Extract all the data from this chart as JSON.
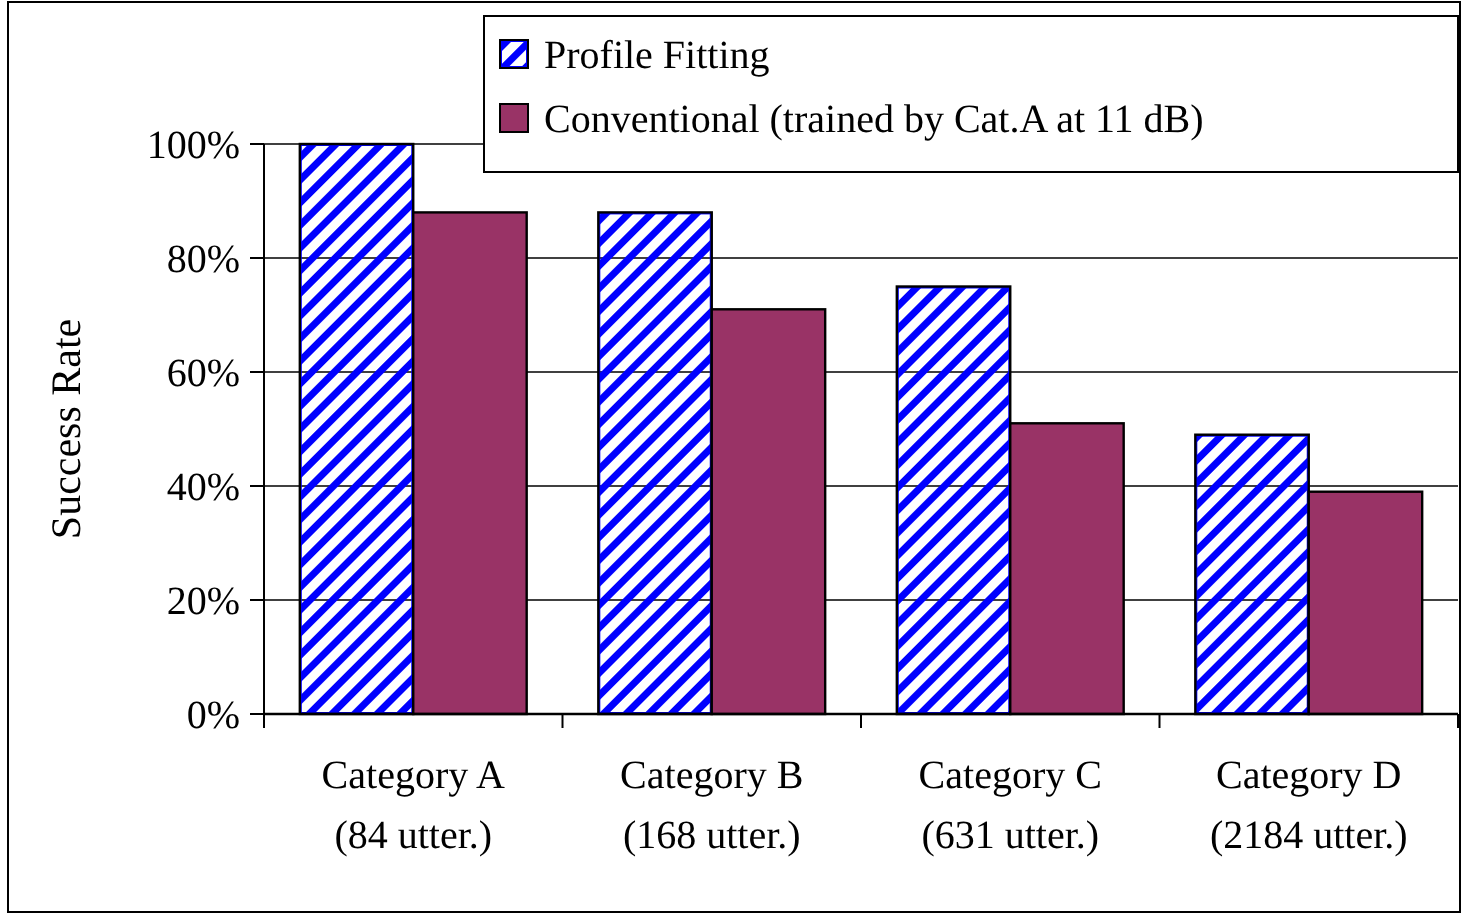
{
  "chart_data": {
    "type": "bar",
    "ylabel": "Success Rate",
    "categories": [
      "Category A\n(84 utter.)",
      "Category B\n(168 utter.)",
      "Category C\n(631 utter.)",
      "Category D\n(2184 utter.)"
    ],
    "series": [
      {
        "name": "Profile Fitting",
        "color": "#0000ff",
        "values": [
          100,
          88,
          75,
          49
        ]
      },
      {
        "name": "Conventional (trained by Cat.A at 11 dB)",
        "color": "#993366",
        "values": [
          88,
          71,
          51,
          39
        ]
      }
    ],
    "ylim": [
      0,
      100
    ],
    "yticks": [
      {
        "value": 0,
        "label": "0%"
      },
      {
        "value": 20,
        "label": "20%"
      },
      {
        "value": 40,
        "label": "40%"
      },
      {
        "value": 60,
        "label": "60%"
      },
      {
        "value": 80,
        "label": "80%"
      },
      {
        "value": 100,
        "label": "100%"
      }
    ],
    "grid": "y",
    "legend": "top right"
  }
}
